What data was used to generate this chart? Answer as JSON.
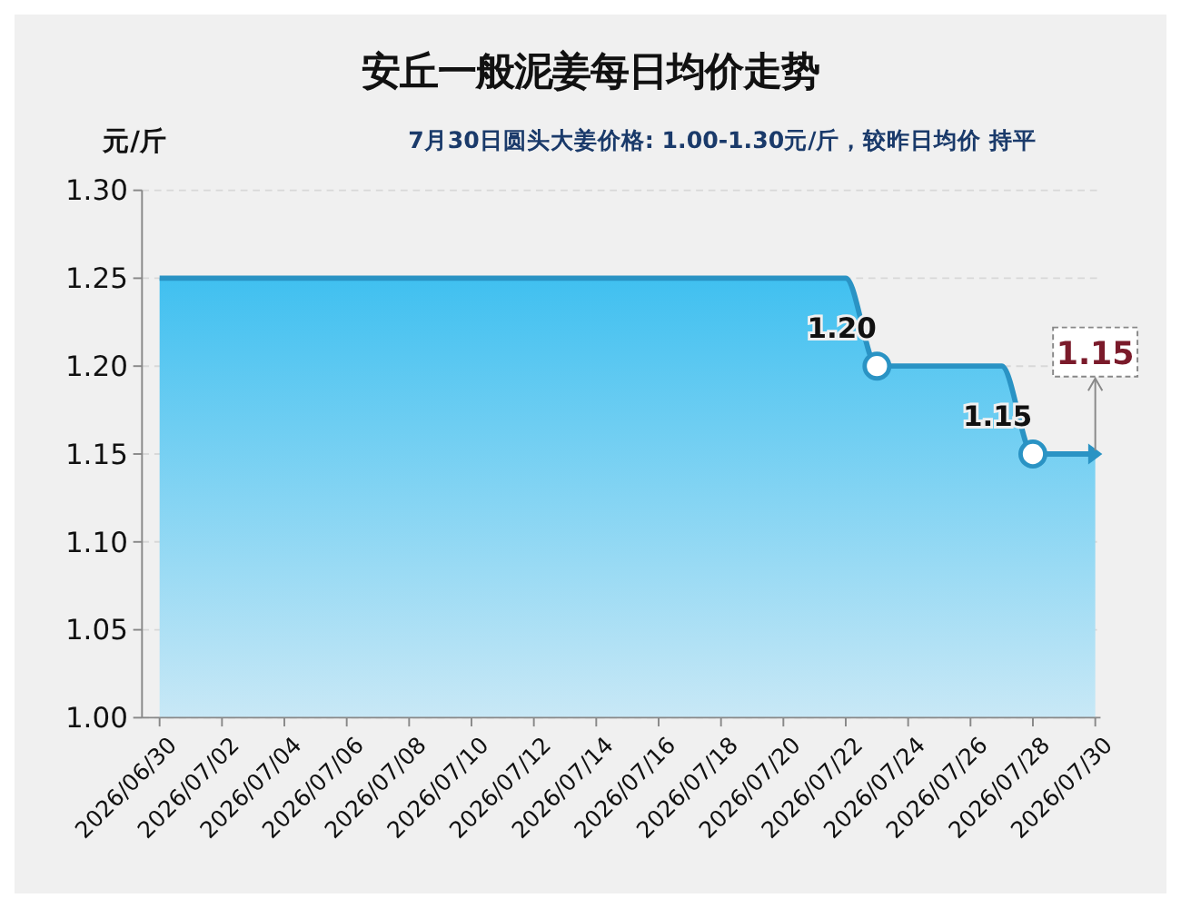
{
  "chart_data": {
    "type": "area",
    "title": "安丘一般泥姜每日均价走势",
    "subtitle": "7月30日圆头大姜价格: 1.00-1.30元/斤，较昨日均价 持平",
    "ylabel": "元/斤",
    "series": [
      {
        "color": "#2a93c4",
        "x": [
          "2026-06-30",
          "2026-07-22",
          "2026-07-23",
          "2026-07-27",
          "2026-07-28",
          "2026-07-30"
        ],
        "values": [
          1.25,
          1.25,
          1.2,
          1.2,
          1.15,
          1.15
        ]
      },
      {
        "type": "scatter",
        "color": "#2a93c4",
        "marker": "circle",
        "x": [
          "2026-07-23",
          "2026-07-28"
        ],
        "values": [
          1.2,
          1.15
        ],
        "value_labels": [
          "1.20",
          "1.15"
        ]
      }
    ],
    "annotations": [
      {
        "text": "1.15",
        "x": "2026-07-30",
        "y": 1.15
      }
    ],
    "xlim": [
      "2026-06-30",
      "2026-07-30"
    ],
    "xticks": [
      {
        "value": "2026-06-30",
        "label": "2026/06/30"
      },
      {
        "value": "2026-07-02",
        "label": "2026/07/02"
      },
      {
        "value": "2026-07-04",
        "label": "2026/07/04"
      },
      {
        "value": "2026-07-06",
        "label": "2026/07/06"
      },
      {
        "value": "2026-07-08",
        "label": "2026/07/08"
      },
      {
        "value": "2026-07-10",
        "label": "2026/07/10"
      },
      {
        "value": "2026-07-12",
        "label": "2026/07/12"
      },
      {
        "value": "2026-07-14",
        "label": "2026/07/14"
      },
      {
        "value": "2026-07-16",
        "label": "2026/07/16"
      },
      {
        "value": "2026-07-18",
        "label": "2026/07/18"
      },
      {
        "value": "2026-07-20",
        "label": "2026/07/20"
      },
      {
        "value": "2026-07-22",
        "label": "2026/07/22"
      },
      {
        "value": "2026-07-24",
        "label": "2026/07/24"
      },
      {
        "value": "2026-07-26",
        "label": "2026/07/26"
      },
      {
        "value": "2026-07-28",
        "label": "2026/07/28"
      },
      {
        "value": "2026-07-30",
        "label": "2026/07/30"
      }
    ],
    "ylim": [
      1.0,
      1.3
    ],
    "yticks": [
      {
        "value": 1.0,
        "label": "1.00"
      },
      {
        "value": 1.05,
        "label": "1.05"
      },
      {
        "value": 1.1,
        "label": "1.10"
      },
      {
        "value": 1.15,
        "label": "1.15"
      },
      {
        "value": 1.2,
        "label": "1.20"
      },
      {
        "value": 1.25,
        "label": "1.25"
      },
      {
        "value": 1.3,
        "label": "1.30"
      }
    ],
    "grid": "y"
  }
}
